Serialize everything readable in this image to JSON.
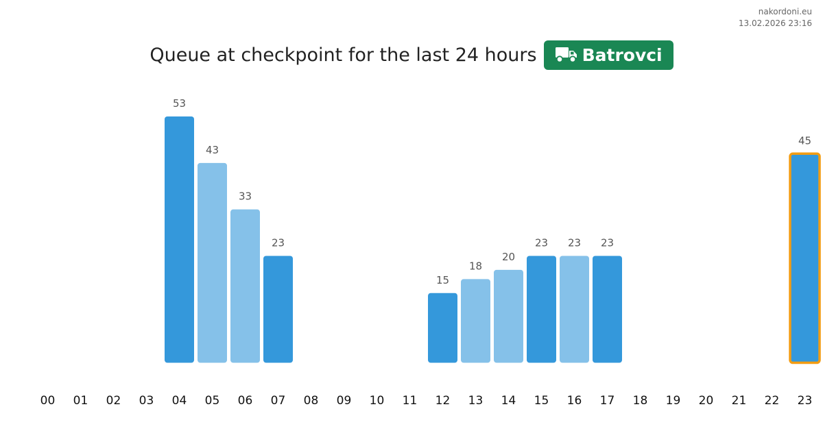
{
  "site": {
    "name": "nakordoni.eu",
    "timestamp": "13.02.2026 23:16"
  },
  "header": {
    "title": "Queue at checkpoint for the last 24 hours",
    "badge_icon": "truck-icon",
    "badge_label": "Batrovci",
    "badge_color": "#1a8754"
  },
  "colors": {
    "bar_dark": "#3498db",
    "bar_light": "#85c1e9",
    "highlight_border": "#f39c12"
  },
  "chart_data": {
    "type": "bar",
    "title": "",
    "xlabel": "",
    "ylabel": "",
    "categories": [
      "00",
      "01",
      "02",
      "03",
      "04",
      "05",
      "06",
      "07",
      "08",
      "09",
      "10",
      "11",
      "12",
      "13",
      "14",
      "15",
      "16",
      "17",
      "18",
      "19",
      "20",
      "21",
      "22",
      "23"
    ],
    "values": [
      null,
      null,
      null,
      null,
      53,
      43,
      33,
      23,
      null,
      null,
      null,
      null,
      15,
      18,
      20,
      23,
      23,
      23,
      null,
      null,
      null,
      null,
      null,
      45
    ],
    "shades": [
      "",
      "",
      "",
      "",
      "dark",
      "light",
      "light",
      "dark",
      "",
      "",
      "",
      "",
      "dark",
      "light",
      "light",
      "dark",
      "light",
      "dark",
      "",
      "",
      "",
      "",
      "",
      "dark"
    ],
    "highlighted_category": "23",
    "ylim": [
      0,
      53
    ],
    "grid": false,
    "legend": "none"
  }
}
